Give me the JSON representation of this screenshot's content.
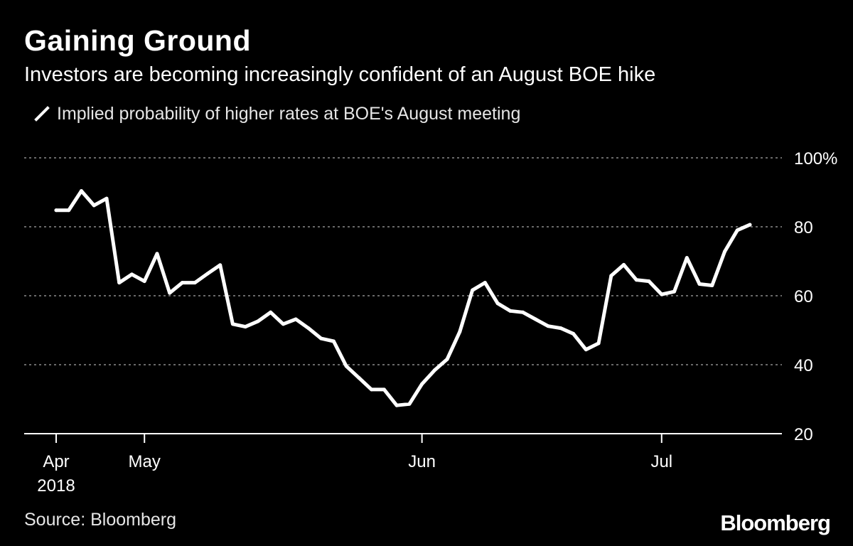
{
  "chart_data": {
    "type": "line",
    "title": "Gaining Ground",
    "subtitle": "Investors are becoming increasingly confident of an August BOE hike",
    "legend": [
      "Implied probability of higher rates at BOE's August meeting"
    ],
    "xlabel": "",
    "ylabel": "",
    "ylim": [
      20,
      100
    ],
    "yticks": [
      20,
      40,
      60,
      80,
      100
    ],
    "ytick_labels": [
      "20",
      "40",
      "60",
      "80",
      "100%"
    ],
    "xticks": [
      {
        "label": "Apr",
        "sublabel": "2018",
        "index": 0
      },
      {
        "label": "May",
        "index": 7
      },
      {
        "label": "Jun",
        "index": 29
      },
      {
        "label": "Jul",
        "index": 48
      }
    ],
    "grid": true,
    "series": [
      {
        "name": "Implied probability of higher rates at BOE's August meeting",
        "color": "#ffffff",
        "values": [
          84.8,
          84.8,
          90.4,
          86.2,
          88.2,
          63.8,
          66.2,
          64.2,
          72.2,
          60.8,
          63.8,
          63.8,
          66.4,
          68.9,
          51.8,
          51.0,
          52.6,
          55.2,
          51.8,
          53.2,
          50.6,
          47.6,
          46.8,
          39.6,
          36.2,
          32.8,
          32.8,
          28.2,
          28.6,
          34.4,
          38.4,
          41.6,
          49.6,
          61.6,
          63.8,
          57.8,
          55.6,
          55.2,
          53.2,
          51.2,
          50.6,
          49.0,
          44.4,
          46.2,
          65.8,
          69.0,
          64.6,
          64.2,
          60.4,
          61.2,
          71.0,
          63.4,
          63.0,
          72.8,
          79.0,
          80.6
        ]
      }
    ]
  },
  "source": "Source: Bloomberg",
  "logo": "Bloomberg"
}
